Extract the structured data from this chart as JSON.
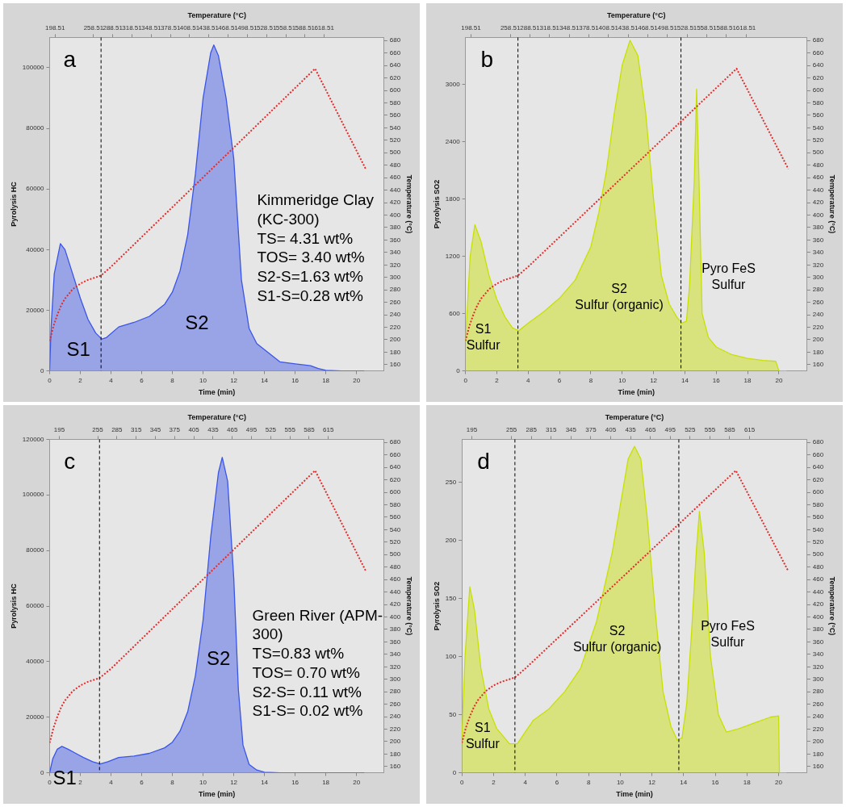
{
  "chart_data": [
    {
      "type": "area",
      "xlabel": "Time (min)",
      "ylabel": "Pyrolysis HC",
      "y2label": "Temperature (°C)",
      "x2label": "Temperature (°C)",
      "xlim": [
        0,
        21.8
      ],
      "xticks": [
        0,
        2,
        4,
        6,
        8,
        10,
        12,
        14,
        16,
        18,
        20
      ],
      "x2lim": [
        190,
        712
      ],
      "x2ticks": [
        198.51,
        258.51,
        288.51,
        318.51,
        348.51,
        378.51,
        408.51,
        438.51,
        468.51,
        498.51,
        528.51,
        558.51,
        588.51,
        618.51
      ],
      "ylim": [
        0,
        110000
      ],
      "yticks": [
        0,
        20000,
        40000,
        60000,
        80000,
        100000
      ],
      "y2lim": [
        150,
        685
      ],
      "y2ticks": [
        160,
        180,
        200,
        220,
        240,
        260,
        280,
        300,
        320,
        340,
        360,
        380,
        400,
        420,
        440,
        460,
        480,
        500,
        520,
        540,
        560,
        580,
        600,
        620,
        640,
        660,
        680
      ],
      "series": [
        {
          "type": "area",
          "color": "#3b55e6",
          "x": [
            0,
            0.1,
            0.3,
            0.7,
            1.0,
            1.5,
            2,
            2.5,
            3,
            3.4,
            3.7,
            4.5,
            5.5,
            6.5,
            7.5,
            8,
            8.5,
            9,
            9.5,
            10,
            10.5,
            10.7,
            11,
            11.5,
            12,
            12.5,
            13,
            13.5,
            14,
            14.5,
            15,
            16,
            17,
            17.5,
            18,
            19,
            20.5
          ],
          "values": [
            0,
            15000,
            32000,
            42000,
            40000,
            32000,
            24000,
            17000,
            12500,
            10500,
            11000,
            14500,
            16000,
            18000,
            22000,
            26000,
            33000,
            45000,
            65000,
            90000,
            105000,
            107500,
            104000,
            90000,
            70000,
            30000,
            14000,
            9000,
            7000,
            5000,
            3000,
            2300,
            1700,
            800,
            200,
            0,
            0
          ]
        },
        {
          "type": "line",
          "axis": "y2",
          "color": "#e02c2c",
          "line_style": "dotted",
          "x": [
            0,
            0.25,
            0.5,
            0.75,
            1,
            1.5,
            2,
            2.5,
            3,
            3.35,
            4,
            17.3,
            20.6
          ],
          "values": [
            198,
            222,
            240,
            255,
            266,
            281,
            290,
            296,
            300,
            303,
            317,
            635,
            474
          ]
        }
      ],
      "ref_lines": [
        {
          "axis": "x",
          "value": 3.35,
          "color": "#000000",
          "line_style": "dashed"
        }
      ],
      "annotations": [
        "a",
        "Kimmeridge Clay\n(KC-300)\nTS= 4.31 wt%\nTOS= 3.40 wt%\nS2-S=1.63 wt%\nS1-S=0.28 wt%",
        "S1",
        "S2"
      ]
    },
    {
      "type": "area",
      "xlabel": "Time (min)",
      "ylabel": "Pyrolysis SO2",
      "y2label": "Temperature (°C)",
      "x2label": "Temperature (°C)",
      "xlim": [
        0,
        21.8
      ],
      "xticks": [
        0,
        2,
        4,
        6,
        8,
        10,
        12,
        14,
        16,
        18,
        20
      ],
      "x2lim": [
        190,
        712
      ],
      "x2ticks": [
        198.51,
        258.51,
        288.51,
        318.51,
        348.51,
        378.51,
        408.51,
        438.51,
        468.51,
        498.51,
        528.51,
        558.51,
        588.51,
        618.51
      ],
      "ylim": [
        0,
        3490
      ],
      "yticks": [
        0,
        600,
        1200,
        1800,
        2400,
        3000
      ],
      "y2lim": [
        150,
        685
      ],
      "y2ticks": [
        160,
        180,
        200,
        220,
        240,
        260,
        280,
        300,
        320,
        340,
        360,
        380,
        400,
        420,
        440,
        460,
        480,
        500,
        520,
        540,
        560,
        580,
        600,
        620,
        640,
        660,
        680
      ],
      "series": [
        {
          "type": "area",
          "color": "#c8e000",
          "x": [
            0,
            0.3,
            0.6,
            1.0,
            1.5,
            2,
            2.5,
            3,
            3.4,
            4,
            5,
            6,
            7,
            8,
            8.5,
            9,
            9.5,
            10,
            10.5,
            11,
            11.5,
            12,
            12.5,
            13,
            13.5,
            13.8,
            14.1,
            14.3,
            14.6,
            14.75,
            14.9,
            15.1,
            15.5,
            16,
            17,
            18,
            19,
            19.8,
            20,
            20.5
          ],
          "values": [
            300,
            1200,
            1530,
            1350,
            1000,
            750,
            570,
            450,
            420,
            500,
            620,
            760,
            950,
            1300,
            1650,
            2100,
            2700,
            3200,
            3460,
            3300,
            2700,
            1800,
            1000,
            700,
            560,
            500,
            520,
            900,
            2000,
            2950,
            2000,
            600,
            350,
            250,
            170,
            130,
            110,
            100,
            0,
            0
          ]
        },
        {
          "type": "line",
          "axis": "y2",
          "color": "#e02c2c",
          "line_style": "dotted",
          "x": [
            0,
            0.25,
            0.5,
            0.75,
            1,
            1.5,
            2,
            2.5,
            3,
            3.35,
            4,
            17.3,
            20.6
          ],
          "values": [
            198,
            222,
            240,
            255,
            266,
            281,
            290,
            296,
            300,
            303,
            317,
            635,
            474
          ]
        }
      ],
      "ref_lines": [
        {
          "axis": "x",
          "value": 3.35,
          "color": "#000000",
          "line_style": "dashed"
        },
        {
          "axis": "x",
          "value": 13.75,
          "color": "#000000",
          "line_style": "dashed"
        }
      ],
      "annotations": [
        "b",
        "S1\nSulfur",
        "S2\nSulfur (organic)",
        "Pyro FeS\nSulfur"
      ]
    },
    {
      "type": "area",
      "xlabel": "Time (min)",
      "ylabel": "Pyrolysis HC",
      "y2label": "Temperature (°C)",
      "x2label": "Temperature (°C)",
      "xlim": [
        0,
        21.8
      ],
      "xticks": [
        0,
        2,
        4,
        6,
        8,
        10,
        12,
        14,
        16,
        18,
        20
      ],
      "x2lim": [
        180,
        702
      ],
      "x2ticks": [
        195,
        255,
        285,
        315,
        345,
        375,
        405,
        435,
        465,
        495,
        525,
        555,
        585,
        615
      ],
      "ylim": [
        0,
        120000
      ],
      "yticks": [
        0,
        20000,
        40000,
        60000,
        80000,
        100000,
        120000
      ],
      "y2lim": [
        150,
        685
      ],
      "y2ticks": [
        160,
        180,
        200,
        220,
        240,
        260,
        280,
        300,
        320,
        340,
        360,
        380,
        400,
        420,
        440,
        460,
        480,
        500,
        520,
        540,
        560,
        580,
        600,
        620,
        640,
        660,
        680
      ],
      "series": [
        {
          "type": "area",
          "color": "#3b55e6",
          "x": [
            0,
            0.2,
            0.5,
            0.8,
            1.2,
            1.7,
            2.2,
            2.8,
            3.3,
            3.8,
            4.5,
            5.5,
            6.5,
            7.5,
            8,
            8.5,
            9,
            9.5,
            10,
            10.5,
            11,
            11.25,
            11.6,
            12,
            12.3,
            12.6,
            13,
            13.5,
            14,
            15,
            20.5
          ],
          "values": [
            0,
            5000,
            8500,
            9500,
            8500,
            7000,
            5500,
            4000,
            3200,
            4000,
            5500,
            6000,
            7000,
            9000,
            11000,
            15000,
            22000,
            35000,
            55000,
            85000,
            108000,
            113500,
            105000,
            70000,
            30000,
            10000,
            3000,
            1000,
            200,
            0,
            0
          ]
        },
        {
          "type": "line",
          "axis": "y2",
          "color": "#e02c2c",
          "line_style": "dotted",
          "x": [
            0,
            0.25,
            0.5,
            0.75,
            1,
            1.5,
            2,
            2.5,
            3,
            3.25,
            4,
            17.3,
            20.6
          ],
          "values": [
            198,
            222,
            240,
            255,
            266,
            281,
            290,
            296,
            300,
            302,
            317,
            635,
            474
          ]
        }
      ],
      "ref_lines": [
        {
          "axis": "x",
          "value": 3.25,
          "color": "#000000",
          "line_style": "dashed"
        }
      ],
      "annotations": [
        "c",
        "Green River (APM-\n300)\nTS=0.83 wt%\nTOS= 0.70 wt%\nS2-S= 0.11 wt%\nS1-S= 0.02 wt%",
        "S1",
        "S2"
      ]
    },
    {
      "type": "area",
      "xlabel": "Time (min)",
      "ylabel": "Pyrolysis SO2",
      "y2label": "Temperature (°C)",
      "x2label": "Temperature (°C)",
      "xlim": [
        0,
        21.8
      ],
      "xticks": [
        0,
        2,
        4,
        6,
        8,
        10,
        12,
        14,
        16,
        18,
        20
      ],
      "x2lim": [
        180,
        702
      ],
      "x2ticks": [
        195,
        255,
        285,
        315,
        345,
        375,
        405,
        435,
        465,
        495,
        525,
        555,
        585,
        615
      ],
      "ylim": [
        0,
        287
      ],
      "yticks": [
        0,
        50,
        100,
        150,
        200,
        250
      ],
      "y2lim": [
        150,
        685
      ],
      "y2ticks": [
        160,
        180,
        200,
        220,
        240,
        260,
        280,
        300,
        320,
        340,
        360,
        380,
        400,
        420,
        440,
        460,
        480,
        500,
        520,
        540,
        560,
        580,
        600,
        620,
        640,
        660,
        680
      ],
      "series": [
        {
          "type": "area",
          "color": "#c8e000",
          "x": [
            0,
            0.2,
            0.5,
            0.8,
            1.2,
            1.7,
            2.2,
            2.7,
            3,
            3.5,
            4,
            4.5,
            5.5,
            6.5,
            7.5,
            8.5,
            9,
            9.5,
            10,
            10.5,
            10.9,
            11.3,
            11.7,
            12.2,
            12.7,
            13.2,
            13.6,
            13.9,
            14.2,
            14.5,
            14.8,
            15,
            15.3,
            15.7,
            16.2,
            16.7,
            17.5,
            18.5,
            19.5,
            20,
            20.05,
            20.5
          ],
          "values": [
            30,
            100,
            160,
            140,
            90,
            55,
            38,
            30,
            25,
            25,
            35,
            45,
            55,
            70,
            90,
            130,
            160,
            190,
            230,
            270,
            281,
            270,
            220,
            140,
            70,
            40,
            28,
            30,
            60,
            120,
            190,
            225,
            190,
            100,
            50,
            35,
            38,
            43,
            48,
            49,
            0,
            0
          ]
        },
        {
          "type": "line",
          "axis": "y2",
          "color": "#e02c2c",
          "line_style": "dotted",
          "x": [
            0,
            0.25,
            0.5,
            0.75,
            1,
            1.5,
            2,
            2.5,
            3,
            3.35,
            4,
            17.3,
            20.6
          ],
          "values": [
            198,
            222,
            240,
            255,
            266,
            281,
            290,
            296,
            300,
            303,
            317,
            635,
            474
          ]
        }
      ],
      "ref_lines": [
        {
          "axis": "x",
          "value": 3.35,
          "color": "#000000",
          "line_style": "dashed"
        },
        {
          "axis": "x",
          "value": 13.7,
          "color": "#000000",
          "line_style": "dashed"
        }
      ],
      "annotations": [
        "d",
        "S1\nSulfur",
        "S2\nSulfur (organic)",
        "Pyro FeS\nSulfur"
      ]
    }
  ]
}
